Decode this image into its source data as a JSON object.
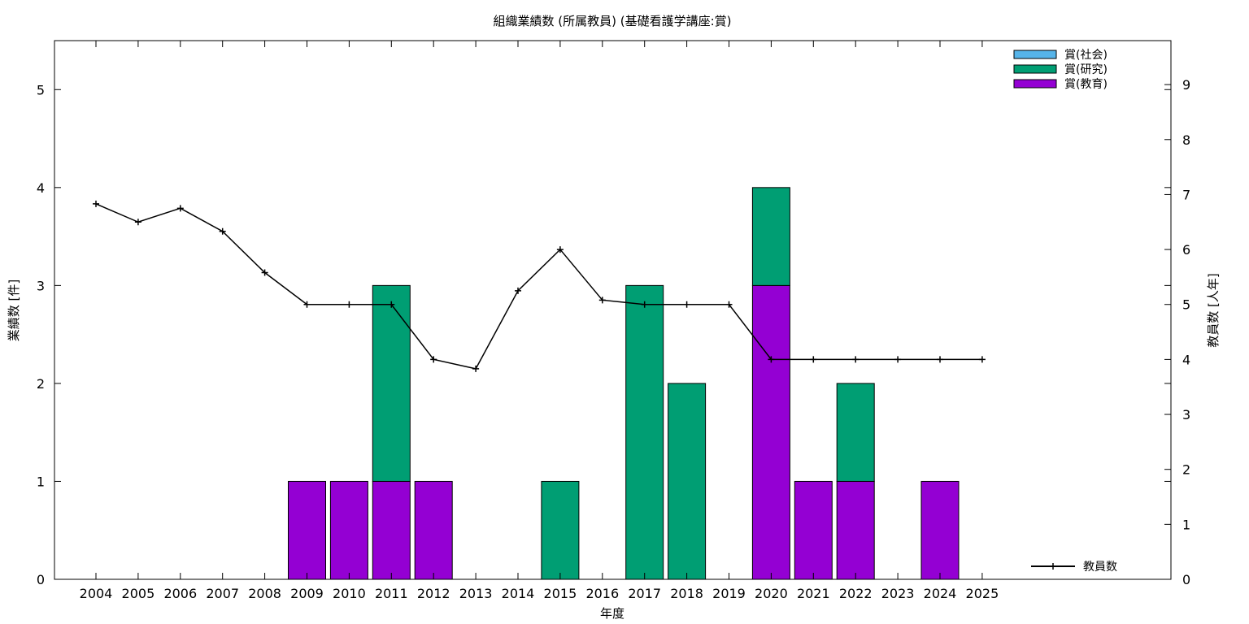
{
  "chart_data": {
    "type": "bar",
    "title": "組織業績数 (所属教員) (基礎看護学講座:賞)",
    "xlabel": "年度",
    "ylabel": "業績数 [件]",
    "y2label": "教員数 [人年]",
    "ylim": [
      0,
      5.5
    ],
    "y2lim": [
      0,
      9.8
    ],
    "yticks": [
      "0",
      "1",
      "2",
      "3",
      "4",
      "5"
    ],
    "y2ticks": [
      "0",
      "1",
      "2",
      "3",
      "4",
      "5",
      "6",
      "7",
      "8",
      "9"
    ],
    "categories": [
      "2004",
      "2005",
      "2006",
      "2007",
      "2008",
      "2009",
      "2010",
      "2011",
      "2012",
      "2013",
      "2014",
      "2015",
      "2016",
      "2017",
      "2018",
      "2019",
      "2020",
      "2021",
      "2022",
      "2023",
      "2024",
      "2025"
    ],
    "stacked": true,
    "series": [
      {
        "name": "賞(教育)",
        "color": "#9400d3",
        "values": [
          0,
          0,
          0,
          0,
          0,
          1,
          1,
          1,
          1,
          0,
          0,
          0,
          0,
          0,
          0,
          0,
          3,
          1,
          1,
          0,
          1,
          0
        ]
      },
      {
        "name": "賞(研究)",
        "color": "#009e73",
        "values": [
          0,
          0,
          0,
          0,
          0,
          0,
          0,
          2,
          0,
          0,
          0,
          1,
          0,
          3,
          2,
          0,
          1,
          0,
          1,
          0,
          0,
          0
        ]
      },
      {
        "name": "賞(社会)",
        "color": "#56b4e9",
        "values": [
          0,
          0,
          0,
          0,
          0,
          0,
          0,
          0,
          0,
          0,
          0,
          0,
          0,
          0,
          0,
          0,
          0,
          0,
          0,
          0,
          0,
          0
        ]
      }
    ],
    "line_series": {
      "name": "教員数",
      "axis": "y2",
      "color": "#000000",
      "values": [
        6.83,
        6.5,
        6.75,
        6.33,
        5.58,
        5,
        5,
        5,
        4,
        3.83,
        5.25,
        6,
        5.08,
        5,
        5,
        5,
        4,
        4,
        4,
        4,
        4,
        4
      ]
    },
    "legend_top": [
      "賞(社会)",
      "賞(研究)",
      "賞(教育)"
    ],
    "legend_placement": "top-right",
    "line_legend_placement": "bottom-right"
  }
}
